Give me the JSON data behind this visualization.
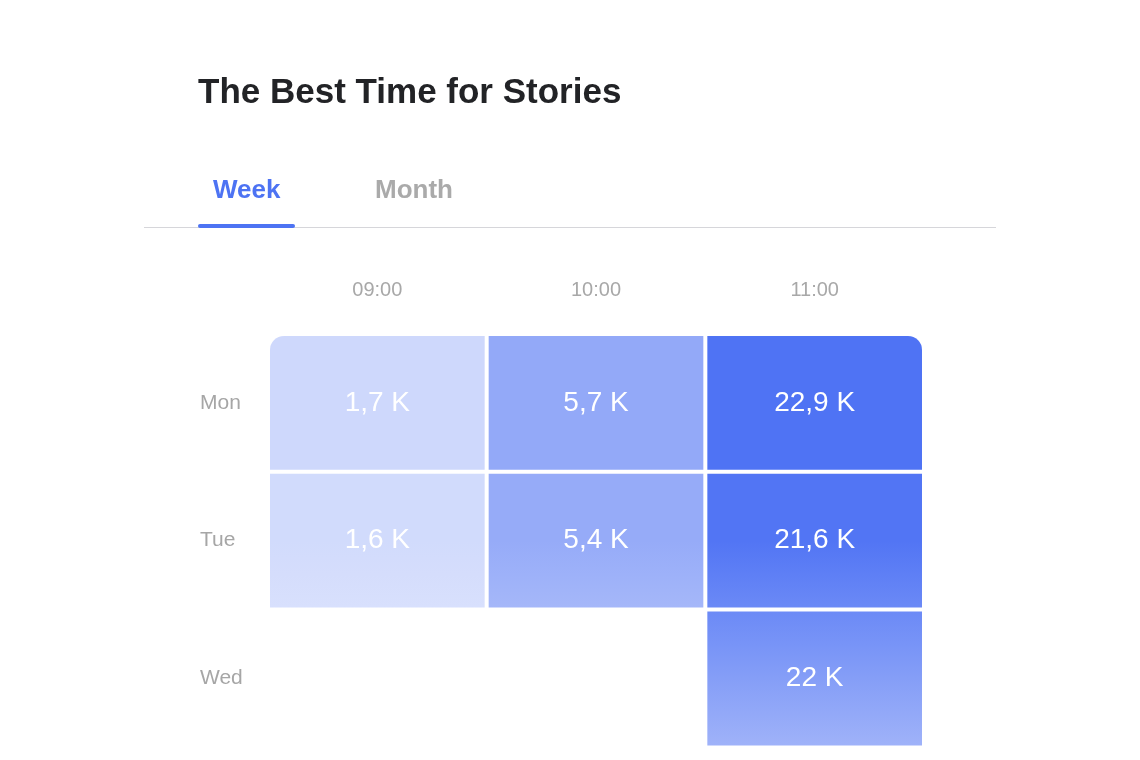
{
  "chart_data": {
    "type": "heatmap",
    "title": "The Best Time for Stories",
    "annotations": [
      "Week",
      "Month"
    ],
    "categories": [
      "09:00",
      "10:00",
      "11:00"
    ],
    "y_categories": [
      "Mon",
      "Tue",
      "Wed"
    ],
    "cells": [
      [
        1.7,
        5.7,
        22.9
      ],
      [
        1.6,
        5.4,
        21.6
      ],
      [
        null,
        null,
        22
      ]
    ],
    "cell_labels": [
      [
        "1,7 K",
        "5,7 K",
        "22,9 K"
      ],
      [
        "1,6 K",
        "5,4 K",
        "21,6 K"
      ],
      [
        null,
        null,
        "22 K"
      ]
    ],
    "color": "#4f73f4"
  }
}
